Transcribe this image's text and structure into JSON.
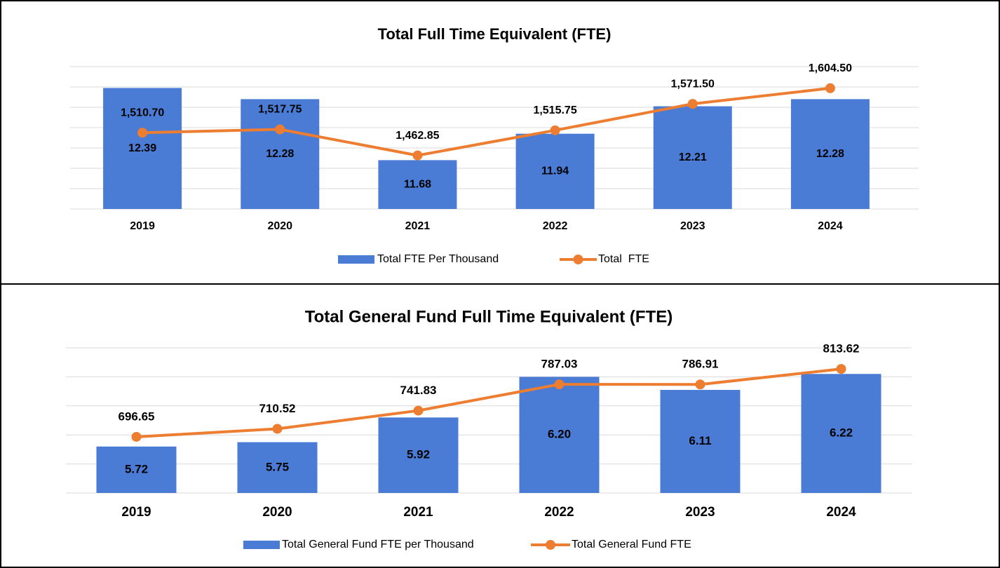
{
  "chart_data": [
    {
      "type": "bar_line",
      "title": "Total Full Time Equivalent (FTE)",
      "categories": [
        "2019",
        "2020",
        "2021",
        "2022",
        "2023",
        "2024"
      ],
      "ylim": [
        11.2,
        12.6
      ],
      "yticks": [
        11.2,
        11.4,
        11.6,
        11.8,
        12.0,
        12.2,
        12.4,
        12.6
      ],
      "y2lim": [
        1350,
        1650
      ],
      "grid": true,
      "legend": "bottom",
      "series": [
        {
          "name": "Total FTE Per Thousand",
          "type": "bar",
          "color": "#4a7bd5",
          "axis": "y",
          "values": [
            12.39,
            12.28,
            11.68,
            11.94,
            12.21,
            12.28
          ],
          "value_labels": [
            "12.39",
            "12.28",
            "11.68",
            "11.94",
            "12.21",
            "12.28"
          ]
        },
        {
          "name": "Total  FTE",
          "type": "line",
          "color": "#ed7d31",
          "axis": "y2",
          "values": [
            1510.7,
            1517.75,
            1462.85,
            1515.75,
            1571.5,
            1604.5
          ],
          "value_labels": [
            "1,510.70",
            "1,517.75",
            "1,462.85",
            "1,515.75",
            "1,571.50",
            "1,604.50"
          ]
        }
      ]
    },
    {
      "type": "bar_line",
      "title": "Total General Fund Full Time Equivalent (FTE)",
      "categories": [
        "2019",
        "2020",
        "2021",
        "2022",
        "2023",
        "2024"
      ],
      "ylim": [
        5.4,
        6.4
      ],
      "yticks": [
        5.4,
        5.6,
        5.8,
        6.0,
        6.2,
        6.4
      ],
      "y2lim": [
        600,
        850
      ],
      "grid": true,
      "legend": "bottom",
      "series": [
        {
          "name": "Total General Fund FTE per Thousand",
          "type": "bar",
          "color": "#4a7bd5",
          "axis": "y",
          "values": [
            5.72,
            5.75,
            5.92,
            6.2,
            6.11,
            6.22
          ],
          "value_labels": [
            "5.72",
            "5.75",
            "5.92",
            "6.20",
            "6.11",
            "6.22"
          ]
        },
        {
          "name": "Total General Fund FTE",
          "type": "line",
          "color": "#ed7d31",
          "axis": "y2",
          "values": [
            696.65,
            710.52,
            741.83,
            787.03,
            786.91,
            813.62
          ],
          "value_labels": [
            "696.65",
            "710.52",
            "741.83",
            "787.03",
            "786.91",
            "813.62"
          ]
        }
      ]
    }
  ]
}
